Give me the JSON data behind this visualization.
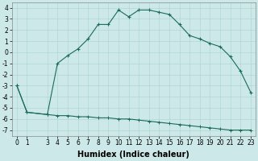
{
  "xlabel": "Humidex (Indice chaleur)",
  "background_color": "#cce8e8",
  "line_color": "#1a6b5a",
  "x_upper": [
    0,
    1,
    3,
    4,
    5,
    6,
    7,
    8,
    9,
    10,
    11,
    12,
    13,
    14,
    15,
    16,
    17,
    18,
    19,
    20,
    21,
    22,
    23
  ],
  "y_upper": [
    -3,
    -5.4,
    -5.6,
    -1.0,
    -0.3,
    0.3,
    1.2,
    2.5,
    2.5,
    3.8,
    3.2,
    3.8,
    3.8,
    3.6,
    3.4,
    2.5,
    1.5,
    1.2,
    0.8,
    0.5,
    -0.4,
    -1.7,
    -3.6
  ],
  "x_lower": [
    0,
    1,
    3,
    4,
    5,
    6,
    7,
    8,
    9,
    10,
    11,
    12,
    13,
    14,
    15,
    16,
    17,
    18,
    19,
    20,
    21,
    22,
    23
  ],
  "y_lower": [
    -3,
    -5.4,
    -5.6,
    -5.7,
    -5.7,
    -5.8,
    -5.8,
    -5.9,
    -5.9,
    -6.0,
    -6.0,
    -6.1,
    -6.2,
    -6.3,
    -6.4,
    -6.5,
    -6.6,
    -6.7,
    -6.8,
    -6.9,
    -7.0,
    -7.0,
    -7.0
  ],
  "xlim": [
    -0.5,
    23.5
  ],
  "ylim": [
    -7.5,
    4.5
  ],
  "yticks": [
    -7,
    -6,
    -5,
    -4,
    -3,
    -2,
    -1,
    0,
    1,
    2,
    3,
    4
  ],
  "xtick_vals": [
    0,
    1,
    3,
    4,
    5,
    6,
    7,
    8,
    9,
    10,
    11,
    12,
    13,
    14,
    15,
    16,
    17,
    18,
    19,
    20,
    21,
    22,
    23
  ],
  "xtick_labels": [
    "0",
    "1",
    "3",
    "4",
    "5",
    "6",
    "7",
    "8",
    "9",
    "10",
    "11",
    "12",
    "13",
    "14",
    "15",
    "16",
    "17",
    "18",
    "19",
    "20",
    "21",
    "22",
    "23"
  ],
  "grid_color": "#aad4d0",
  "tick_fontsize": 5.5,
  "xlabel_fontsize": 7
}
